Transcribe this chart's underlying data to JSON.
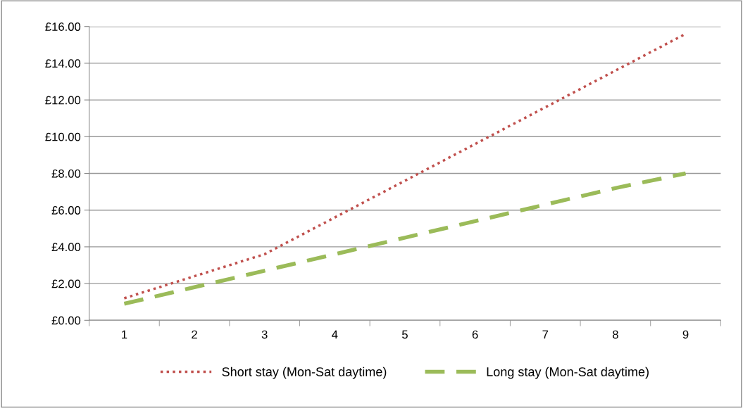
{
  "chart_data": {
    "type": "line",
    "categories": [
      "1",
      "2",
      "3",
      "4",
      "5",
      "6",
      "7",
      "8",
      "9"
    ],
    "series": [
      {
        "name": "Short stay (Mon-Sat daytime)",
        "color": "#c0504d",
        "line_style": "dotted",
        "values": [
          1.2,
          2.4,
          3.6,
          5.6,
          7.6,
          9.6,
          11.6,
          13.6,
          15.6
        ]
      },
      {
        "name": "Long stay (Mon-Sat daytime)",
        "color": "#9bbb59",
        "line_style": "dashed",
        "values": [
          0.9,
          1.8,
          2.7,
          3.6,
          4.5,
          5.4,
          6.3,
          7.2,
          8.0
        ]
      }
    ],
    "ylim": [
      0,
      16
    ],
    "yticks": [
      {
        "value": 0,
        "label": "£0.00"
      },
      {
        "value": 2,
        "label": "£2.00"
      },
      {
        "value": 4,
        "label": "£4.00"
      },
      {
        "value": 6,
        "label": "£6.00"
      },
      {
        "value": 8,
        "label": "£8.00"
      },
      {
        "value": 10,
        "label": "£10.00"
      },
      {
        "value": 12,
        "label": "£12.00"
      },
      {
        "value": 14,
        "label": "£14.00"
      },
      {
        "value": 16,
        "label": "£16.00"
      }
    ],
    "grid": "y",
    "legend": "bottom",
    "marker": "none"
  }
}
